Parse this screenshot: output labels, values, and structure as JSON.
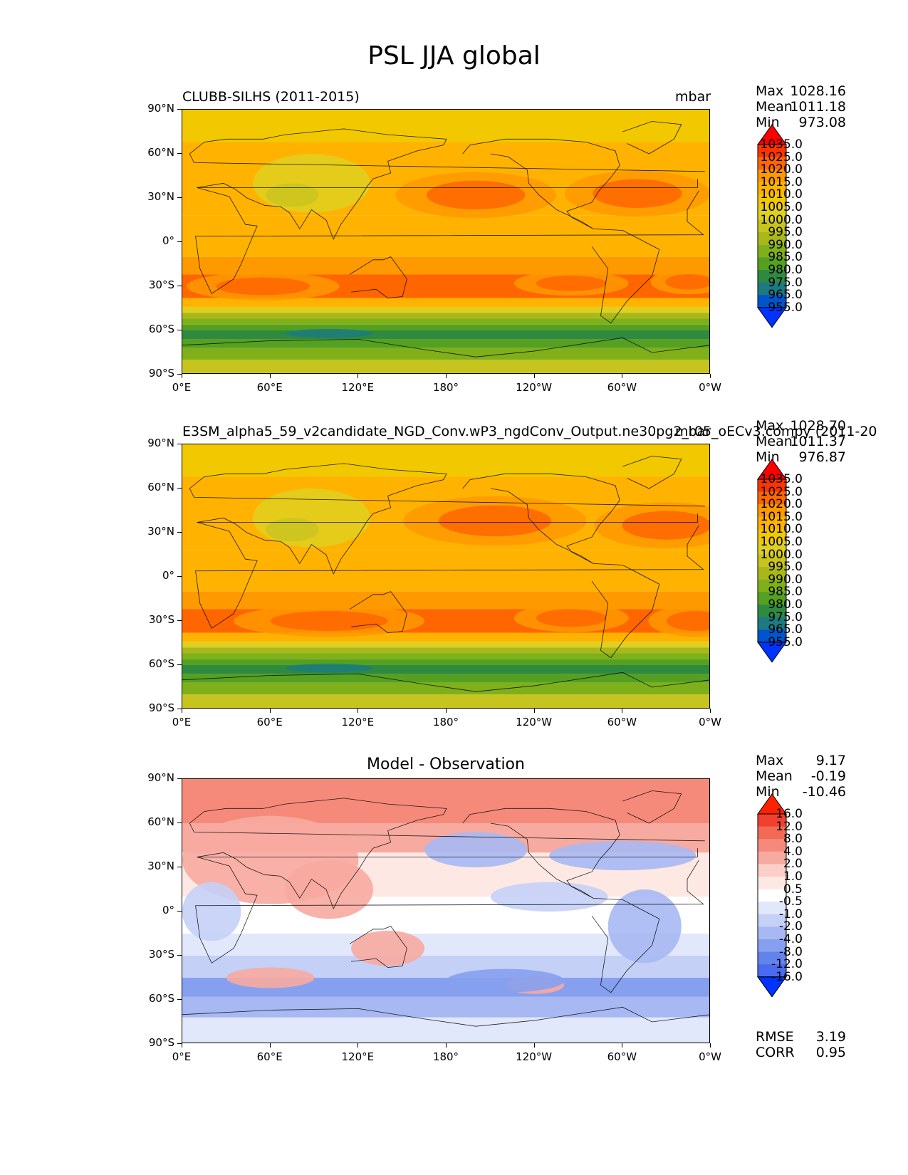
{
  "main_title": "PSL JJA global",
  "panels": [
    {
      "title_left": "CLUBB-SILHS (2011-2015)",
      "title_right": "mbar",
      "stats": [
        {
          "label": "Max",
          "value": "1028.16"
        },
        {
          "label": "Mean",
          "value": "1011.18"
        },
        {
          "label": "Min",
          "value": "973.08"
        }
      ],
      "colorbar": [
        "1035.0",
        "1025.0",
        "1020.0",
        "1015.0",
        "1010.0",
        "1005.0",
        "1000.0",
        "995.0",
        "990.0",
        "985.0",
        "980.0",
        "975.0",
        "965.0",
        "955.0"
      ]
    },
    {
      "title_left": "E3SM_alpha5_59_v2candidate_NGD_Conv.wP3_ngdConv_Output.ne30pg2_r05_oECv3.compy (2011-20",
      "title_right": "mbar",
      "stats": [
        {
          "label": "Max",
          "value": "1028.70"
        },
        {
          "label": "Mean",
          "value": "1011.37"
        },
        {
          "label": "Min",
          "value": "976.87"
        }
      ],
      "colorbar": [
        "1035.0",
        "1025.0",
        "1020.0",
        "1015.0",
        "1010.0",
        "1005.0",
        "1000.0",
        "995.0",
        "990.0",
        "985.0",
        "980.0",
        "975.0",
        "965.0",
        "955.0"
      ]
    },
    {
      "title_center": "Model - Observation",
      "stats": [
        {
          "label": "Max",
          "value": "9.17"
        },
        {
          "label": "Mean",
          "value": "-0.19"
        },
        {
          "label": "Min",
          "value": "-10.46"
        }
      ],
      "colorbar": [
        "16.0",
        "12.0",
        "8.0",
        "4.0",
        "2.0",
        "1.0",
        "0.5",
        "-0.5",
        "-1.0",
        "-2.0",
        "-4.0",
        "-8.0",
        "-12.0",
        "-16.0"
      ],
      "metrics": [
        {
          "label": "RMSE",
          "value": "3.19"
        },
        {
          "label": "CORR",
          "value": "0.95"
        }
      ]
    }
  ],
  "axes": {
    "y_ticks": [
      "90°N",
      "60°N",
      "30°N",
      "0°",
      "30°S",
      "60°S",
      "90°S"
    ],
    "x_ticks": [
      "0°E",
      "60°E",
      "120°E",
      "180°",
      "120°W",
      "60°W",
      "0°W"
    ]
  },
  "colors": {
    "abs_scale": [
      "#ff0000",
      "#ff3300",
      "#ff6600",
      "#ff9900",
      "#ffb300",
      "#f2c800",
      "#e0cf1f",
      "#c8c41f",
      "#a8b81a",
      "#7fb01a",
      "#55a020",
      "#2f8a40",
      "#1c7a80",
      "#0055cc",
      "#0033ff"
    ],
    "diff_scale": [
      "#ff2200",
      "#f04030",
      "#f26a55",
      "#f58a7a",
      "#f7aaa0",
      "#fbcfc8",
      "#fde8e4",
      "#ffffff",
      "#e2e8fb",
      "#c5d0f7",
      "#a7b8f3",
      "#86a0ef",
      "#6383ec",
      "#4a6af0",
      "#0033ff"
    ]
  },
  "chart_data": [
    {
      "type": "heatmap",
      "title": "CLUBB-SILHS (2011-2015)",
      "variable": "PSL",
      "season": "JJA",
      "units": "mbar",
      "xlim": [
        0,
        360
      ],
      "ylim": [
        -90,
        90
      ],
      "levels": [
        955,
        965,
        975,
        980,
        985,
        990,
        995,
        1000,
        1005,
        1010,
        1015,
        1020,
        1025,
        1035
      ],
      "max": 1028.16,
      "mean": 1011.18,
      "min": 973.08
    },
    {
      "type": "heatmap",
      "title": "E3SM_alpha5_59_v2candidate_NGD_Conv.wP3_ngdConv_Output.ne30pg2_r05_oECv3.compy (2011-20",
      "variable": "PSL",
      "season": "JJA",
      "units": "mbar",
      "xlim": [
        0,
        360
      ],
      "ylim": [
        -90,
        90
      ],
      "levels": [
        955,
        965,
        975,
        980,
        985,
        990,
        995,
        1000,
        1005,
        1010,
        1015,
        1020,
        1025,
        1035
      ],
      "max": 1028.7,
      "mean": 1011.37,
      "min": 976.87
    },
    {
      "type": "heatmap",
      "title": "Model - Observation",
      "variable": "PSL",
      "season": "JJA",
      "units": "mbar",
      "xlim": [
        0,
        360
      ],
      "ylim": [
        -90,
        90
      ],
      "levels": [
        -16,
        -12,
        -8,
        -4,
        -2,
        -1,
        -0.5,
        0.5,
        1,
        2,
        4,
        8,
        12,
        16
      ],
      "max": 9.17,
      "mean": -0.19,
      "min": -10.46,
      "rmse": 3.19,
      "corr": 0.95
    }
  ]
}
